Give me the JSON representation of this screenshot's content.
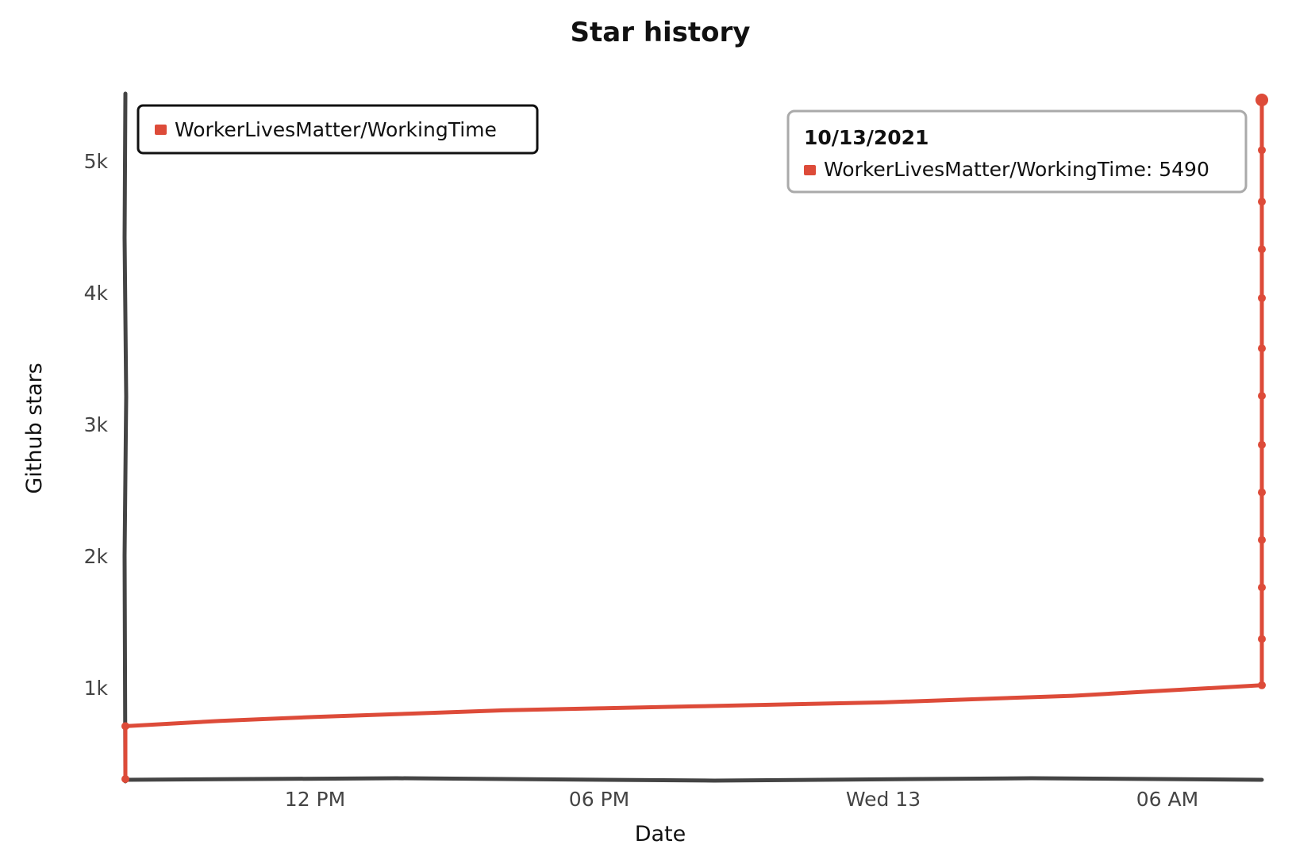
{
  "chart_data": {
    "type": "line",
    "title": "Star history",
    "xlabel": "Date",
    "ylabel": "Github stars",
    "x_ticks": [
      "12 PM",
      "06 PM",
      "Wed 13",
      "06 AM"
    ],
    "y_ticks": [
      "1k",
      "2k",
      "3k",
      "4k",
      "5k"
    ],
    "ylim": [
      350,
      5550
    ],
    "grid": false,
    "legend_position": "top-left",
    "series": [
      {
        "name": "WorkerLivesMatter/WorkingTime",
        "color": "#dd4b39",
        "points": [
          {
            "t": "2021-10-12 08:00",
            "y": 350
          },
          {
            "t": "2021-10-12 08:00",
            "y": 750
          },
          {
            "t": "2021-10-12 10:00",
            "y": 790
          },
          {
            "t": "2021-10-12 12:00",
            "y": 820
          },
          {
            "t": "2021-10-12 14:00",
            "y": 845
          },
          {
            "t": "2021-10-12 16:00",
            "y": 870
          },
          {
            "t": "2021-10-12 18:00",
            "y": 885
          },
          {
            "t": "2021-10-12 20:00",
            "y": 900
          },
          {
            "t": "2021-10-12 22:00",
            "y": 915
          },
          {
            "t": "2021-10-13 00:00",
            "y": 930
          },
          {
            "t": "2021-10-13 02:00",
            "y": 955
          },
          {
            "t": "2021-10-13 04:00",
            "y": 980
          },
          {
            "t": "2021-10-13 06:00",
            "y": 1020
          },
          {
            "t": "2021-10-13 08:00",
            "y": 1060
          },
          {
            "t": "2021-10-13 08:00",
            "y": 1410
          },
          {
            "t": "2021-10-13 08:00",
            "y": 1800
          },
          {
            "t": "2021-10-13 08:00",
            "y": 2160
          },
          {
            "t": "2021-10-13 08:00",
            "y": 2520
          },
          {
            "t": "2021-10-13 08:00",
            "y": 2880
          },
          {
            "t": "2021-10-13 08:00",
            "y": 3250
          },
          {
            "t": "2021-10-13 08:00",
            "y": 3610
          },
          {
            "t": "2021-10-13 08:00",
            "y": 3990
          },
          {
            "t": "2021-10-13 08:00",
            "y": 4360
          },
          {
            "t": "2021-10-13 08:00",
            "y": 4720
          },
          {
            "t": "2021-10-13 08:00",
            "y": 5110
          },
          {
            "t": "2021-10-13 08:00",
            "y": 5490
          }
        ]
      }
    ],
    "tooltip": {
      "date": "10/13/2021",
      "series": "WorkerLivesMatter/WorkingTime",
      "value": 5490
    }
  }
}
